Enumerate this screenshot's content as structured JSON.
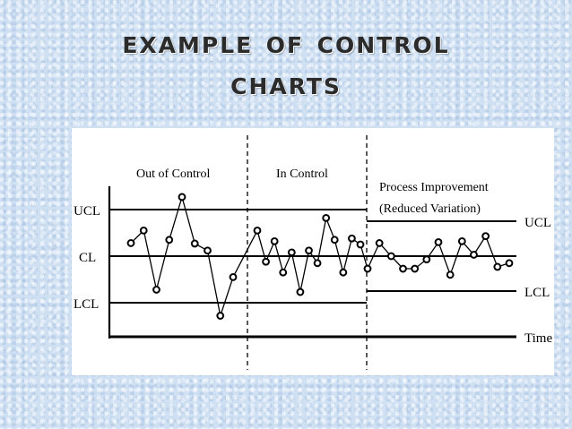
{
  "slide": {
    "title_line1": "Example of Control",
    "title_line2": "Charts"
  },
  "chart_data": {
    "type": "line",
    "title": "",
    "xlabel": "Time",
    "ylabel": "",
    "phases": [
      {
        "label": "Out of Control",
        "values": [
          0.28,
          0.55,
          -0.72,
          0.35,
          1.27,
          0.27,
          0.12,
          -1.28,
          -0.45
        ]
      },
      {
        "label": "In Control",
        "values": [
          0.55,
          -0.12,
          0.32,
          -0.35,
          0.08,
          -0.77,
          0.12,
          -0.15,
          0.82,
          0.35,
          -0.35,
          0.38,
          0.25
        ]
      },
      {
        "label": "Process Improvement\n(Reduced Variation)",
        "values": [
          -0.27,
          0.28,
          0.0,
          -0.27,
          -0.27,
          -0.07,
          0.3,
          -0.4,
          0.32,
          0.03,
          0.43,
          -0.23,
          -0.15
        ]
      }
    ],
    "control_limits_before": {
      "UCL": "UCL",
      "CL": "CL",
      "LCL": "LCL",
      "ucl": 1,
      "cl": 0,
      "lcl": -1
    },
    "control_limits_after": {
      "UCL": "UCL",
      "LCL": "LCL",
      "ucl": 0.75,
      "lcl": -0.75
    },
    "labels": {
      "ucl_left": "UCL",
      "cl_left": "CL",
      "lcl_left": "LCL",
      "ucl_right": "UCL",
      "lcl_right": "LCL"
    },
    "grid": false,
    "colors": {
      "line": "#000000",
      "marker_fill": "#ffffff"
    }
  }
}
